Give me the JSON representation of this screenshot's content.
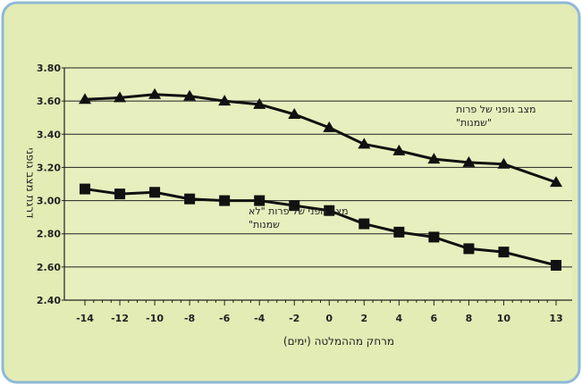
{
  "chart_data": {
    "type": "line",
    "title": "",
    "xlabel": "מרחק מההמלטה (ימים)",
    "ylabel": "דרגת מצב גופני",
    "x": [
      "-14",
      "-12",
      "-10",
      "-8",
      "-6",
      "-4",
      "-2",
      "0",
      "2",
      "4",
      "6",
      "8",
      "10",
      "13"
    ],
    "ylim": [
      2.4,
      3.8
    ],
    "yticks": [
      "2.40",
      "2.60",
      "2.80",
      "3.00",
      "3.20",
      "3.40",
      "3.60",
      "3.80"
    ],
    "grid": true,
    "series": [
      {
        "name": "מצב גופני של פרות \"שמנות\"",
        "label_lines": [
          "מצב גופני של פרות",
          "\"שמנות\""
        ],
        "marker": "triangle",
        "values": [
          3.61,
          3.62,
          3.64,
          3.63,
          3.6,
          3.58,
          3.52,
          3.44,
          3.34,
          3.3,
          3.25,
          3.23,
          3.22,
          3.11
        ]
      },
      {
        "name": "מצב גופני של פרות \"לא שמנות\"",
        "label_lines": [
          "מצב גופני של פרות \"לא",
          "שמנות\""
        ],
        "marker": "square",
        "values": [
          3.07,
          3.04,
          3.05,
          3.01,
          3.0,
          3.0,
          2.97,
          2.94,
          2.86,
          2.81,
          2.78,
          2.71,
          2.69,
          2.61
        ]
      }
    ],
    "colors": {
      "frame_border": "#8fb8d8",
      "frame_fill": "#e2ecb4",
      "plot_fill": "#e7efbe",
      "series_line": "#111111",
      "grid_line": "#222222"
    }
  }
}
